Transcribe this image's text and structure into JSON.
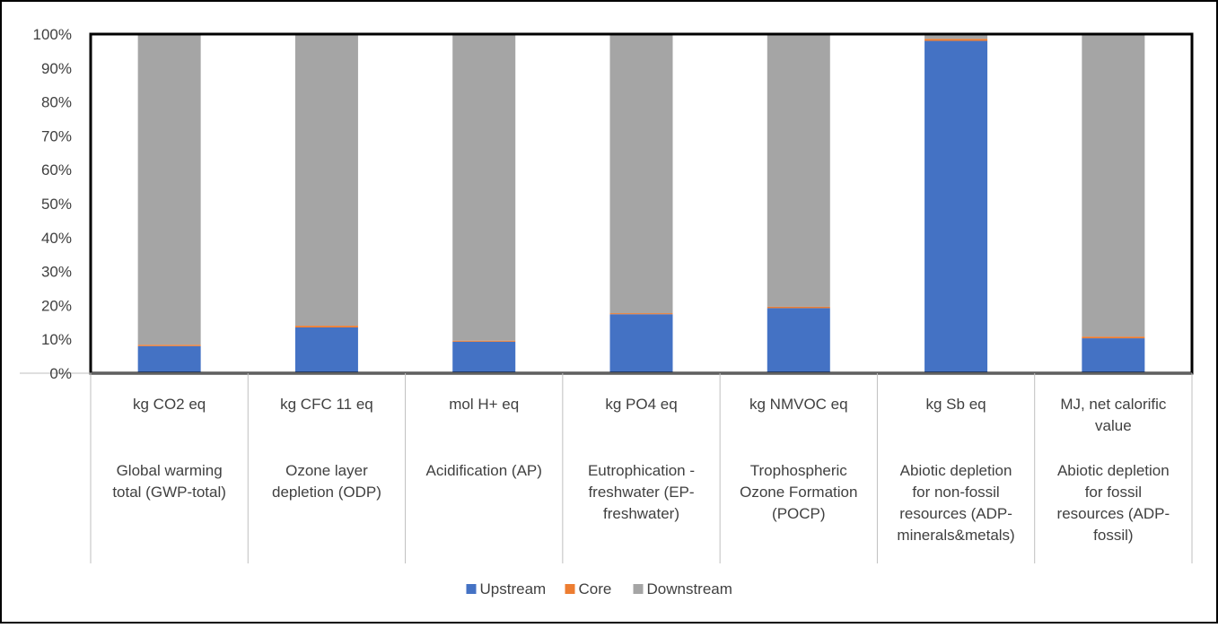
{
  "chart_data": {
    "type": "bar",
    "stacked": true,
    "percent_stacked": true,
    "ylim": [
      0,
      100
    ],
    "y_tick_labels": [
      "0%",
      "10%",
      "20%",
      "30%",
      "40%",
      "50%",
      "60%",
      "70%",
      "80%",
      "90%",
      "100%"
    ],
    "categories": [
      {
        "unit": [
          "kg CO2 eq"
        ],
        "name": [
          "Global warming",
          "total (GWP-total)"
        ]
      },
      {
        "unit": [
          "kg CFC 11 eq"
        ],
        "name": [
          "Ozone layer",
          "depletion (ODP)"
        ]
      },
      {
        "unit": [
          "mol H+ eq"
        ],
        "name": [
          "Acidification (AP)"
        ]
      },
      {
        "unit": [
          "kg PO4 eq"
        ],
        "name": [
          "Eutrophication -",
          "freshwater (EP-",
          "freshwater)"
        ]
      },
      {
        "unit": [
          "kg NMVOC eq"
        ],
        "name": [
          "Trophospheric",
          "Ozone Formation",
          "(POCP)"
        ]
      },
      {
        "unit": [
          "kg Sb eq"
        ],
        "name": [
          "Abiotic depletion",
          "for non-fossil",
          "resources (ADP-",
          "minerals&metals)"
        ]
      },
      {
        "unit": [
          "MJ, net calorific",
          "value"
        ],
        "name": [
          "Abiotic depletion",
          "for fossil",
          "resources (ADP-",
          "fossil)"
        ]
      }
    ],
    "series": [
      {
        "name": "Upstream",
        "color": "#4472c4",
        "values": [
          8.0,
          13.5,
          9.3,
          17.4,
          19.2,
          98.0,
          10.3
        ]
      },
      {
        "name": "Core",
        "color": "#ed7d31",
        "values": [
          0.4,
          0.5,
          0.3,
          0.3,
          0.4,
          0.6,
          0.5
        ]
      },
      {
        "name": "Downstream",
        "color": "#a5a5a5",
        "values": [
          91.6,
          86.0,
          90.4,
          82.3,
          80.4,
          1.4,
          89.2
        ]
      }
    ],
    "legend_position": "bottom",
    "grid": false
  }
}
